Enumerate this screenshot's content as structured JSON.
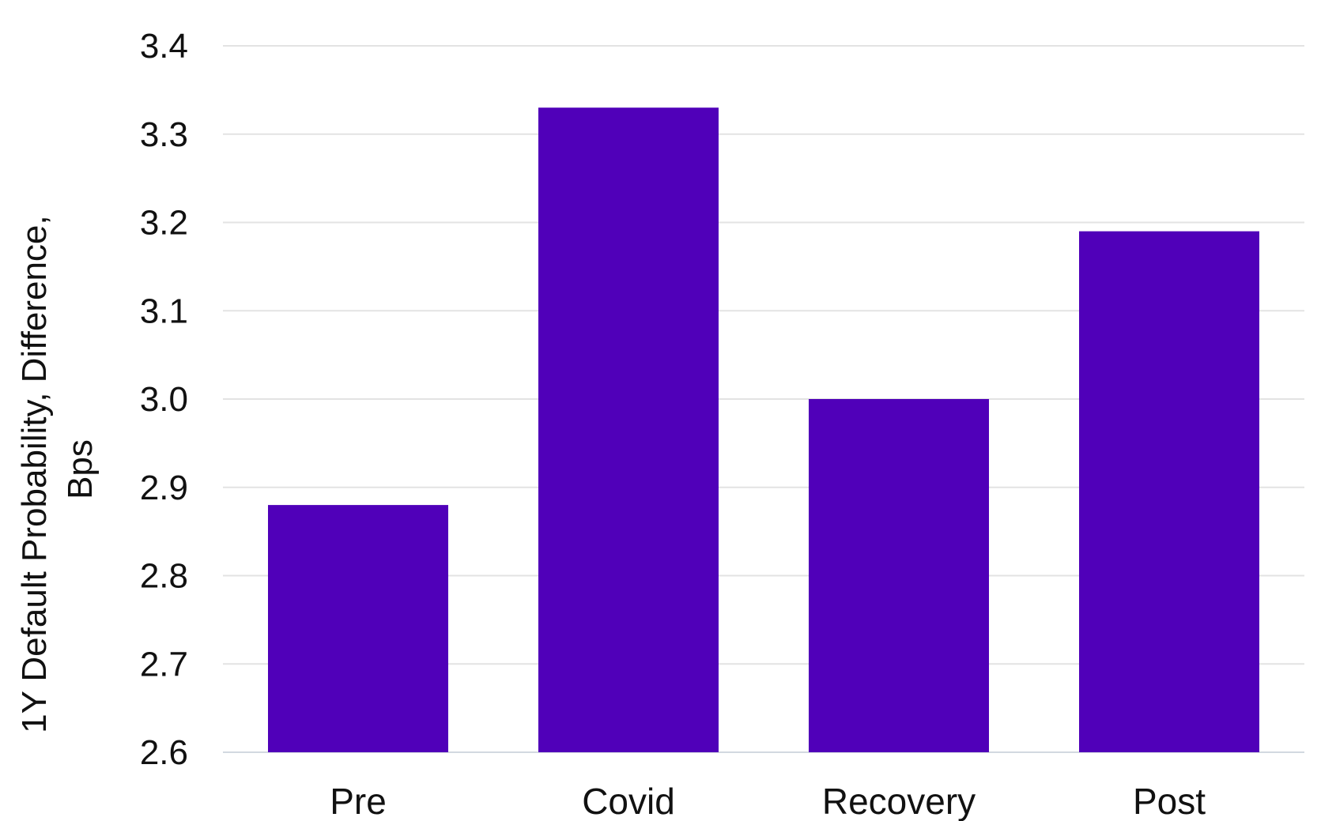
{
  "chart_data": {
    "type": "bar",
    "title": "",
    "xlabel": "",
    "ylabel_lines": [
      "1Y Default Probability, Difference,",
      "Bps"
    ],
    "categories": [
      "Pre",
      "Covid",
      "Recovery",
      "Post"
    ],
    "series": [
      {
        "values": [
          2.88,
          3.33,
          3.0,
          3.19
        ],
        "color": "#5000b9"
      }
    ],
    "ylim": [
      2.6,
      3.4
    ],
    "yticks": [
      "2.6",
      "2.7",
      "2.8",
      "2.9",
      "3.0",
      "3.1",
      "3.2",
      "3.3",
      "3.4"
    ],
    "grid": true,
    "legend": "none",
    "colors": {
      "bar": "#5000b9",
      "grid": "#e3e3e3",
      "baseline": "#d2d9e0",
      "text": "#111111"
    }
  }
}
